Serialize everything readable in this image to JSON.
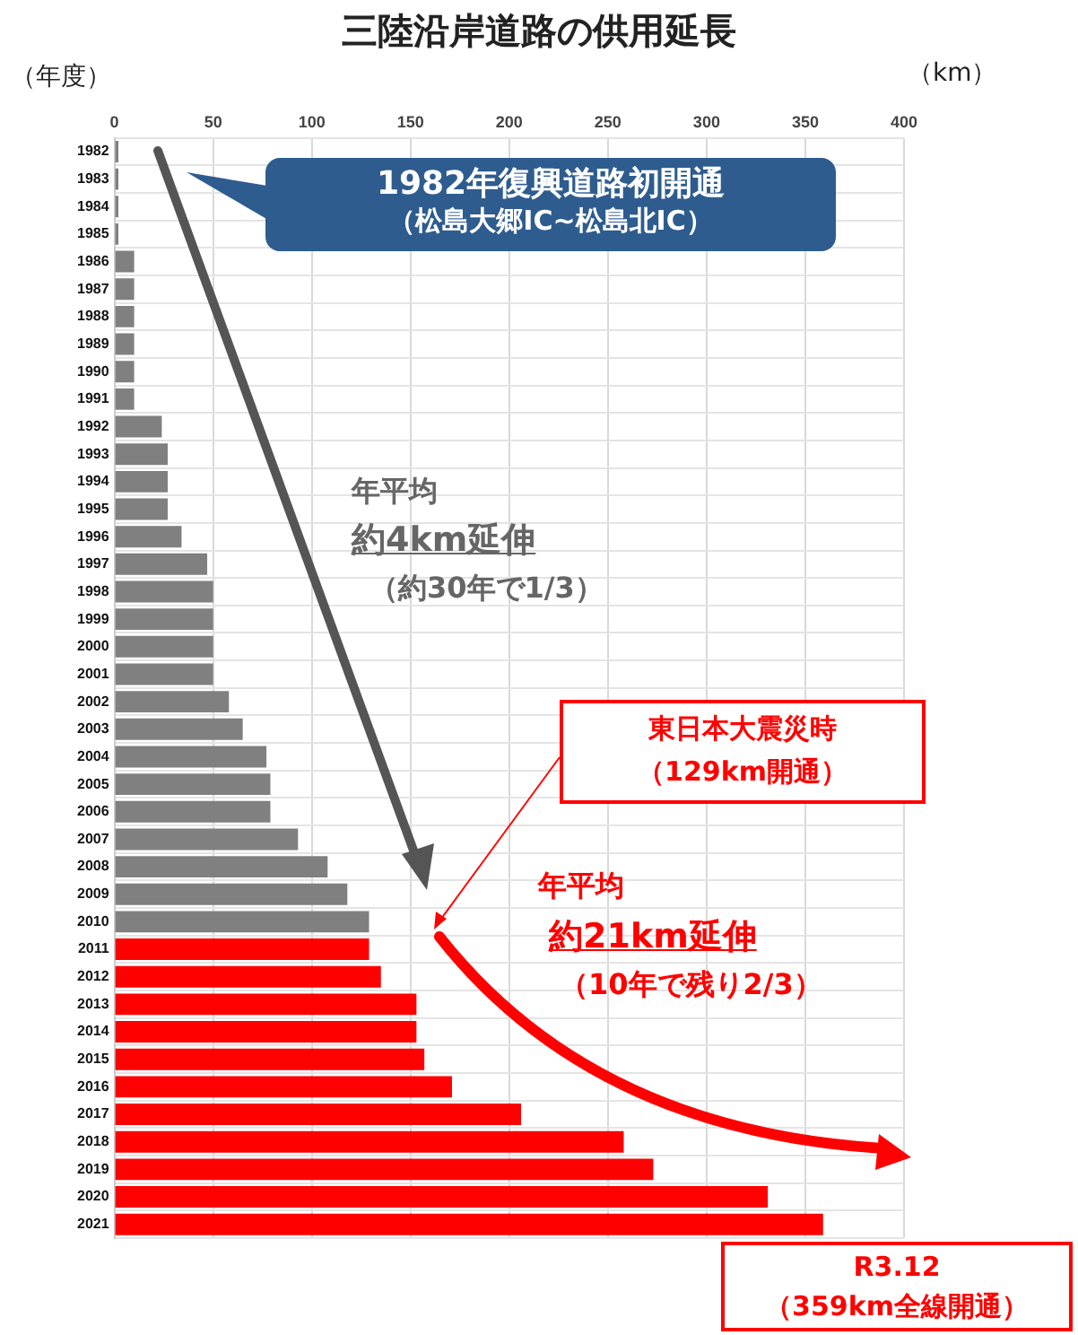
{
  "chart_data": {
    "type": "bar",
    "orientation": "horizontal",
    "title": "三陸沿岸道路の供用延長",
    "ylabel": "（年度）",
    "xlabel": "（km）",
    "categories": [
      "1982",
      "1983",
      "1984",
      "1985",
      "1986",
      "1987",
      "1988",
      "1989",
      "1990",
      "1991",
      "1992",
      "1993",
      "1994",
      "1995",
      "1996",
      "1997",
      "1998",
      "1999",
      "2000",
      "2001",
      "2002",
      "2003",
      "2004",
      "2005",
      "2006",
      "2007",
      "2008",
      "2009",
      "2010",
      "2011",
      "2012",
      "2013",
      "2014",
      "2015",
      "2016",
      "2017",
      "2018",
      "2019",
      "2020",
      "2021"
    ],
    "values": [
      2,
      2,
      2,
      2,
      10,
      10,
      10,
      10,
      10,
      10,
      24,
      27,
      27,
      27,
      34,
      47,
      50,
      50,
      50,
      50,
      58,
      65,
      77,
      79,
      79,
      93,
      108,
      118,
      129,
      129,
      135,
      153,
      153,
      157,
      171,
      206,
      258,
      273,
      331,
      359
    ],
    "colors": [
      "#808080",
      "#808080",
      "#808080",
      "#808080",
      "#808080",
      "#808080",
      "#808080",
      "#808080",
      "#808080",
      "#808080",
      "#808080",
      "#808080",
      "#808080",
      "#808080",
      "#808080",
      "#808080",
      "#808080",
      "#808080",
      "#808080",
      "#808080",
      "#808080",
      "#808080",
      "#808080",
      "#808080",
      "#808080",
      "#808080",
      "#808080",
      "#808080",
      "#808080",
      "#ff0000",
      "#ff0000",
      "#ff0000",
      "#ff0000",
      "#ff0000",
      "#ff0000",
      "#ff0000",
      "#ff0000",
      "#ff0000",
      "#ff0000",
      "#ff0000"
    ],
    "xlim": [
      0,
      400
    ],
    "xticks": [
      0,
      50,
      100,
      150,
      200,
      250,
      300,
      350,
      400
    ],
    "grid": true,
    "annotations": [
      "1982年復興道路初開通",
      "（松島大郷IC~松島北IC）",
      "年平均",
      "約4km延伸",
      "（約30年で1/3）",
      "東日本大震災時",
      "（129km開通）",
      "年平均",
      "約21km延伸",
      "（10年で残り2/3）",
      "R3.12",
      "（359km全線開通）"
    ]
  }
}
